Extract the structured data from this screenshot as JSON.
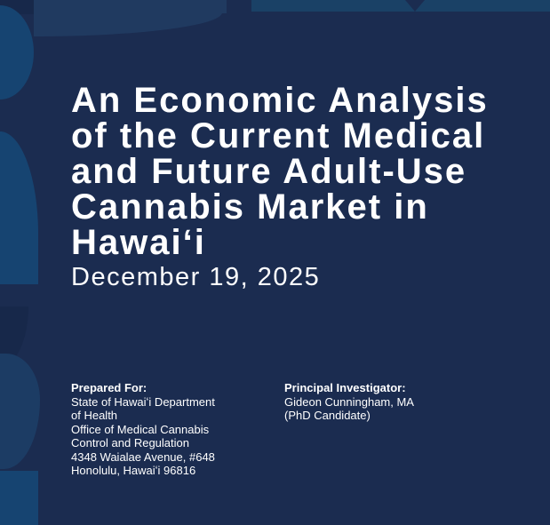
{
  "colors": {
    "bg": "#1b2c50",
    "corner-dark": "#17284a",
    "bar-mid": "#203a60",
    "bar-light": "#1a4166",
    "steel": "#164471",
    "blob": "#1c3c64",
    "text": "#ffffff"
  },
  "cover": {
    "title_lines": [
      "An Economic Analysis",
      "of the Current Medical",
      "and Future Adult-Use",
      "Cannabis Market in",
      "Hawaiʻi"
    ],
    "date": "December 19, 2025",
    "prepared_for": {
      "label": "Prepared For:",
      "lines": [
        "State of Hawaiʻi Department",
        "of Health",
        "Office of Medical Cannabis",
        "Control and Regulation",
        "4348 Waialae Avenue, #648",
        "Honolulu, Hawaiʻi 96816"
      ]
    },
    "principal_investigator": {
      "label": "Principal Investigator:",
      "lines": [
        "Gideon Cunningham, MA",
        "(PhD Candidate)"
      ]
    }
  }
}
